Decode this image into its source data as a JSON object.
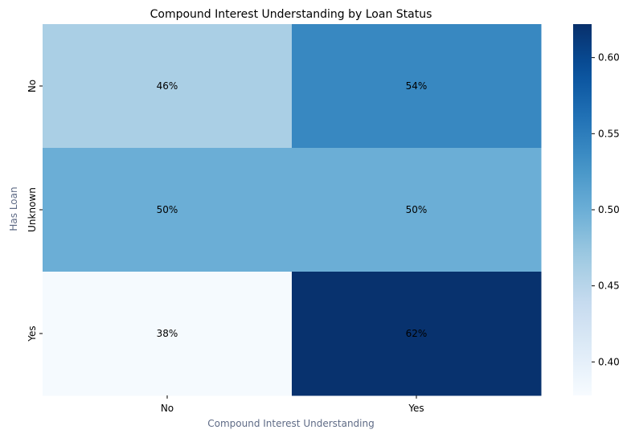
{
  "chart_data": {
    "type": "heatmap",
    "title": "Compound Interest Understanding by Loan Status",
    "xlabel": "Compound Interest Understanding",
    "ylabel": "Has Loan",
    "x_categories": [
      "No",
      "Yes"
    ],
    "y_categories": [
      "No",
      "Unknown",
      "Yes"
    ],
    "values": [
      [
        0.46,
        0.54
      ],
      [
        0.5,
        0.5
      ],
      [
        0.38,
        0.62
      ]
    ],
    "cell_labels": [
      [
        "46%",
        "54%"
      ],
      [
        "50%",
        "50%"
      ],
      [
        "38%",
        "62%"
      ]
    ],
    "colorbar": {
      "range": [
        0.378,
        0.622
      ],
      "ticks": [
        0.4,
        0.45,
        0.5,
        0.55,
        0.6
      ],
      "tick_labels": [
        "0.40",
        "0.45",
        "0.50",
        "0.55",
        "0.60"
      ]
    },
    "colormap": "Blues",
    "colors": {
      "min": "#f7fbff",
      "max": "#08306b",
      "text": "#000000",
      "axis_label": "#5f6b86"
    }
  }
}
